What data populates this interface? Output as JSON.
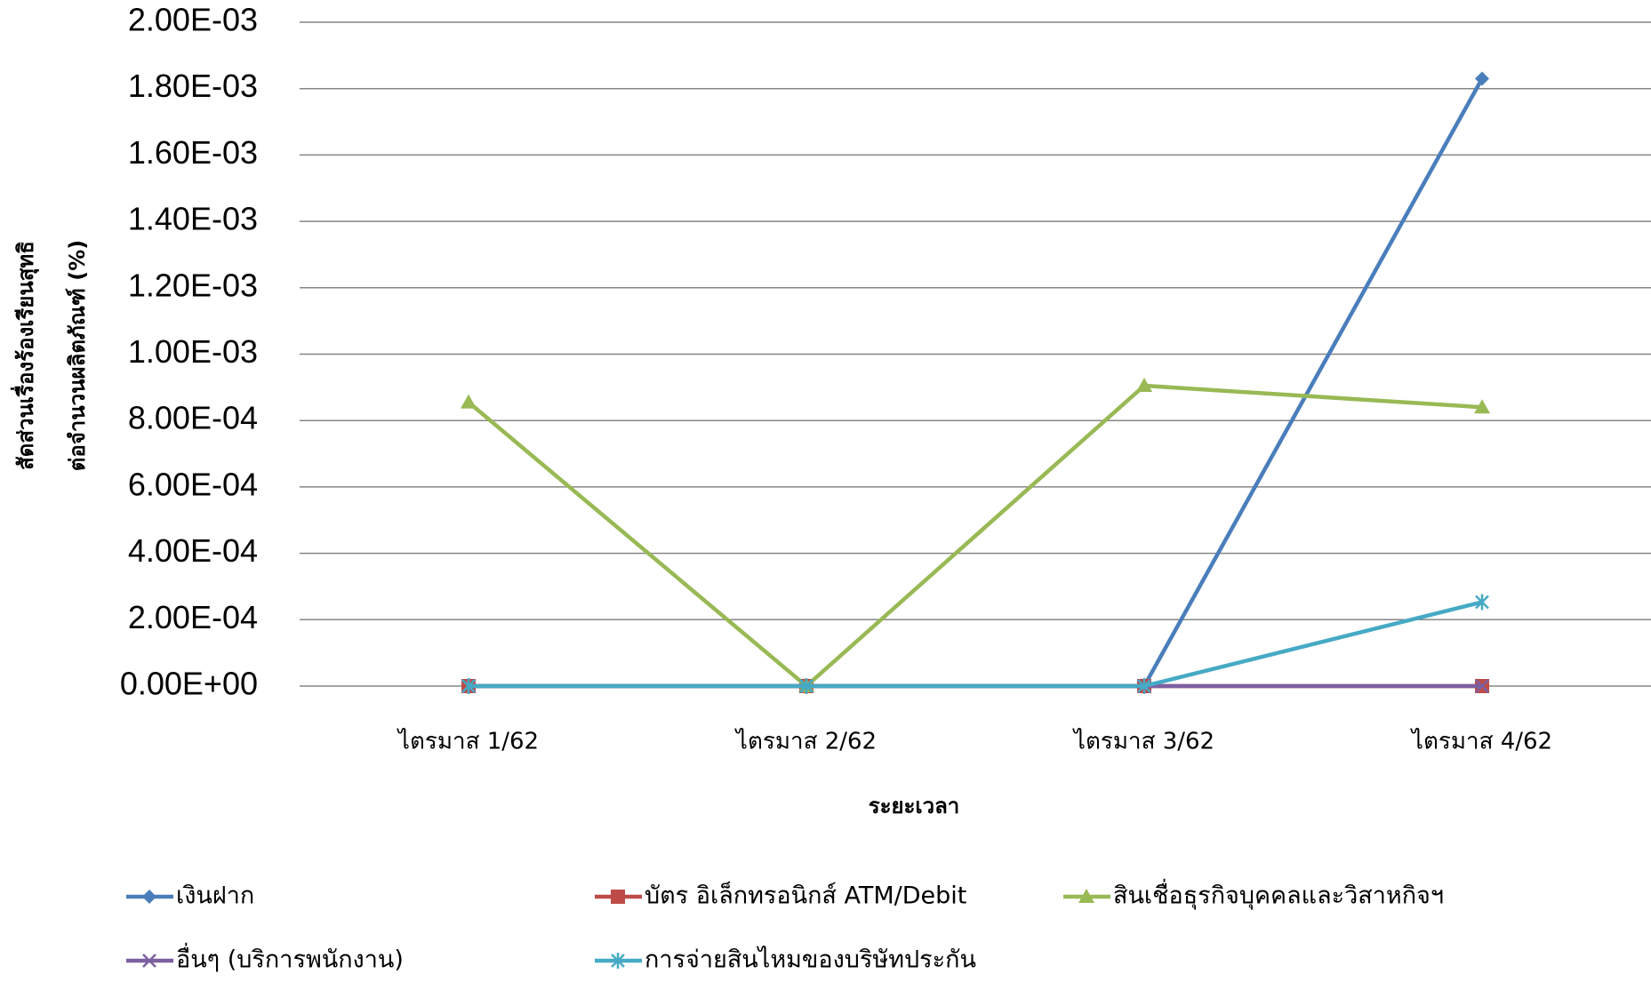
{
  "chart_data": {
    "type": "line",
    "ylabel": [
      "สัดส่วนเรื่องร้องเรียนสุทธิ",
      "ต่อจำนวนผลิตภัณฑ์ (%)"
    ],
    "xlabel": "ระยะเวลา",
    "categories": [
      "ไตรมาส 1/62",
      "ไตรมาส 2/62",
      "ไตรมาส 3/62",
      "ไตรมาส 4/62"
    ],
    "series": [
      {
        "name": "เงินฝาก",
        "color": "#4a7ebb",
        "marker": "diamond",
        "values": [
          0,
          0,
          0,
          0.00183
        ]
      },
      {
        "name": "บัตร อิเล็กทรอนิกส์ ATM/Debit",
        "color": "#be4b48",
        "marker": "square",
        "values": [
          0,
          0,
          0,
          0
        ]
      },
      {
        "name": "สินเชื่อธุรกิจบุคคลและวิสาหกิจฯ",
        "color": "#98b954",
        "marker": "triangle",
        "values": [
          0.000855,
          0,
          0.000905,
          0.00084
        ]
      },
      {
        "name": "อื่นๆ (บริการพนักงาน)",
        "color": "#7d60a0",
        "marker": "x",
        "values": [
          0,
          0,
          0,
          0
        ]
      },
      {
        "name": "การจ่ายสินไหมของบริษัทประกัน",
        "color": "#46aac5",
        "marker": "star",
        "values": [
          0,
          0,
          0,
          0.000253
        ]
      }
    ],
    "ylim": [
      0,
      0.002
    ],
    "yticks": [
      {
        "value": 0,
        "label": "0.00E+00"
      },
      {
        "value": 0.0002,
        "label": "2.00E-04"
      },
      {
        "value": 0.0004,
        "label": "4.00E-04"
      },
      {
        "value": 0.0006,
        "label": "6.00E-04"
      },
      {
        "value": 0.0008,
        "label": "8.00E-04"
      },
      {
        "value": 0.001,
        "label": "1.00E-03"
      },
      {
        "value": 0.0012,
        "label": "1.20E-03"
      },
      {
        "value": 0.0014,
        "label": "1.40E-03"
      },
      {
        "value": 0.0016,
        "label": "1.60E-03"
      },
      {
        "value": 0.0018,
        "label": "1.80E-03"
      },
      {
        "value": 0.002,
        "label": "2.00E-03"
      }
    ],
    "grid": true
  }
}
